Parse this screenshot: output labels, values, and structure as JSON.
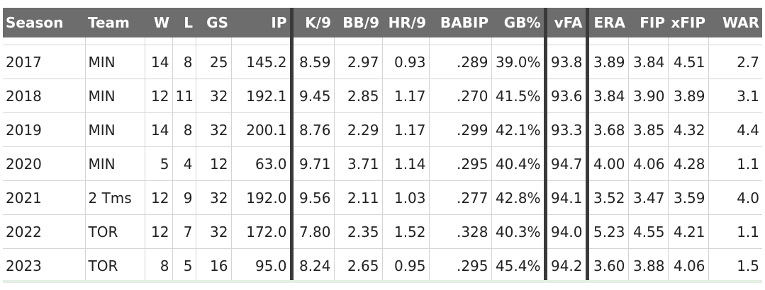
{
  "columns": [
    {
      "key": "season",
      "label": "Season",
      "align": "left"
    },
    {
      "key": "team",
      "label": "Team",
      "align": "left"
    },
    {
      "key": "w",
      "label": "W",
      "align": "right"
    },
    {
      "key": "l",
      "label": "L",
      "align": "right"
    },
    {
      "key": "gs",
      "label": "GS",
      "align": "right"
    },
    {
      "key": "ip",
      "label": "IP",
      "align": "right"
    },
    {
      "key": "k9",
      "label": "K/9",
      "align": "right"
    },
    {
      "key": "bb9",
      "label": "BB/9",
      "align": "right"
    },
    {
      "key": "hr9",
      "label": "HR/9",
      "align": "right"
    },
    {
      "key": "babip",
      "label": "BABIP",
      "align": "right"
    },
    {
      "key": "gb",
      "label": "GB%",
      "align": "right"
    },
    {
      "key": "vfa",
      "label": "vFA",
      "align": "right"
    },
    {
      "key": "era",
      "label": "ERA",
      "align": "right"
    },
    {
      "key": "fip",
      "label": "FIP",
      "align": "right"
    },
    {
      "key": "xfip",
      "label": "xFIP",
      "align": "right"
    },
    {
      "key": "war",
      "label": "WAR",
      "align": "right"
    }
  ],
  "rows": [
    [
      "2017",
      "MIN",
      "14",
      "8",
      "25",
      "145.2",
      "8.59",
      "2.97",
      "0.93",
      ".289",
      "39.0%",
      "93.8",
      "3.89",
      "3.84",
      "4.51",
      "2.7"
    ],
    [
      "2018",
      "MIN",
      "12",
      "11",
      "32",
      "192.1",
      "9.45",
      "2.85",
      "1.17",
      ".270",
      "41.5%",
      "93.6",
      "3.84",
      "3.90",
      "3.89",
      "3.1"
    ],
    [
      "2019",
      "MIN",
      "14",
      "8",
      "32",
      "200.1",
      "8.76",
      "2.29",
      "1.17",
      ".299",
      "42.1%",
      "93.3",
      "3.68",
      "3.85",
      "4.32",
      "4.4"
    ],
    [
      "2020",
      "MIN",
      "5",
      "4",
      "12",
      "63.0",
      "9.71",
      "3.71",
      "1.14",
      ".295",
      "40.4%",
      "94.7",
      "4.00",
      "4.06",
      "4.28",
      "1.1"
    ],
    [
      "2021",
      "2 Tms",
      "12",
      "9",
      "32",
      "192.0",
      "9.56",
      "2.11",
      "1.03",
      ".277",
      "42.8%",
      "94.1",
      "3.52",
      "3.47",
      "3.59",
      "4.0"
    ],
    [
      "2022",
      "TOR",
      "12",
      "7",
      "32",
      "172.0",
      "7.80",
      "2.35",
      "1.52",
      ".328",
      "40.3%",
      "94.0",
      "5.23",
      "4.55",
      "4.21",
      "1.1"
    ],
    [
      "2023",
      "TOR",
      "8",
      "5",
      "16",
      "95.0",
      "8.24",
      "2.65",
      "0.95",
      ".295",
      "45.4%",
      "94.2",
      "3.60",
      "3.88",
      "4.06",
      "1.5"
    ]
  ],
  "colors": {
    "header_background": "#6d6d6d",
    "header_text": "#ffffff",
    "group_separator": "#3a3a3a",
    "grid_line": "#d4d4d4",
    "body_text": "#222222"
  }
}
